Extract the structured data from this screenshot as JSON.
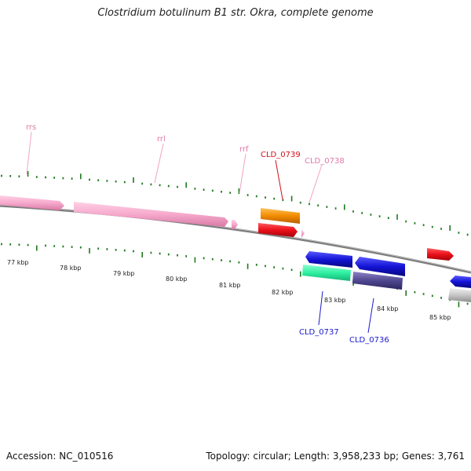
{
  "title": "Clostridium botulinum B1 str. Okra, complete genome",
  "footer": {
    "accession": "Accession: NC_010516",
    "stats": "Topology: circular; Length: 3,958,233 bp; Genes: 3,761"
  },
  "colors": {
    "backbone": "#8a8a8a",
    "tick": "#1e7a1e",
    "rrna": "#f4a6c8",
    "rrna_label": "#e07aa8",
    "red": "#e8121b",
    "red_label": "#d41119",
    "orange": "#f38b00",
    "blue": "#1414d6",
    "blue_label": "#1a1acc",
    "mint": "#2ef0a2",
    "purple": "#4f478f",
    "grey": "#c6c6c6"
  },
  "kbp_labels": [
    "77 kbp",
    "78 kbp",
    "79 kbp",
    "80 kbp",
    "81 kbp",
    "82 kbp",
    "83 kbp",
    "84 kbp",
    "85 kbp"
  ],
  "gene_labels": {
    "rrs": "rrs",
    "rrl": "rrl",
    "rrf": "rrf",
    "cld_0739": "CLD_0739",
    "cld_0738": "CLD_0738",
    "cld_0737": "CLD_0737",
    "cld_0736": "CLD_0736"
  }
}
